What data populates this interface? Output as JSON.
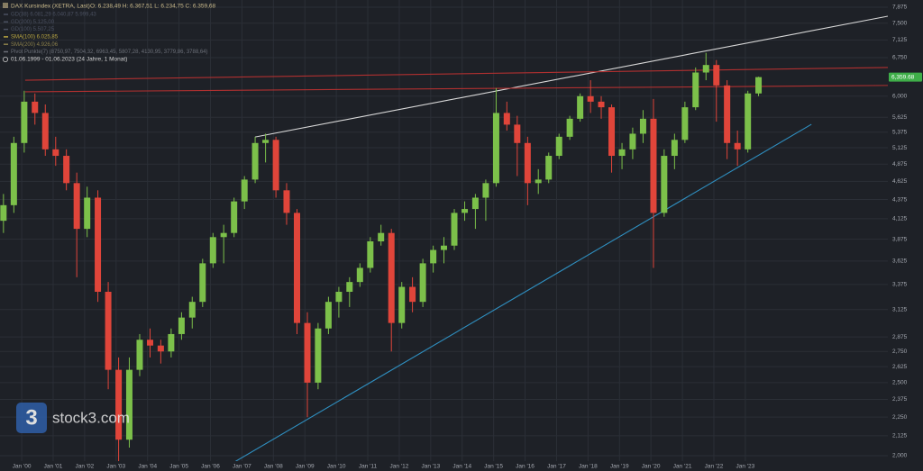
{
  "chart_data": {
    "type": "candlestick",
    "title": "DAX Kursindex (XETRA, Last)",
    "ohlc_text": "O: 6.238,49  H: 6.367,51  L: 6.234,75  C: 6.359,68",
    "indicators": [
      {
        "text": "GD(38)  6.081,29  6.040,87  5.999,43",
        "color": "#4a5060"
      },
      {
        "text": "GD(200)  5.125,00",
        "color": "#4a5060"
      },
      {
        "text": "GD(100)  5.507,25",
        "color": "#4a5060"
      },
      {
        "text": "SMA(100)  6.025,85",
        "color": "#b9a640"
      },
      {
        "text": "SMA(200)  4.926,06",
        "color": "#8a7f4a"
      },
      {
        "text": "Pivot Punkte(7)  (8750,97,  7504,32,  6963,45,  5807,28,  4130,95,  3779,86,  3788,64)",
        "color": "#6b6f78"
      }
    ],
    "period": "01.06.1999 - 01.06.2023  (24 Jahre, 1 Monat)",
    "watermark": "stock3.com",
    "log_scale": true,
    "grid": true,
    "up_color": "#7cc04a",
    "down_color": "#e0453a",
    "xlim": [
      1999.31,
      2027.53
    ],
    "ylim": [
      1967,
      8050
    ],
    "x": [
      1999.42,
      1999.75,
      2000.08,
      2000.42,
      2000.75,
      2001.08,
      2001.42,
      2001.75,
      2002.08,
      2002.42,
      2002.75,
      2003.08,
      2003.42,
      2003.75,
      2004.08,
      2004.42,
      2004.75,
      2005.08,
      2005.42,
      2005.75,
      2006.08,
      2006.42,
      2006.75,
      2007.08,
      2007.42,
      2007.75,
      2008.08,
      2008.42,
      2008.75,
      2009.08,
      2009.42,
      2009.75,
      2010.08,
      2010.42,
      2010.75,
      2011.08,
      2011.42,
      2011.75,
      2012.08,
      2012.42,
      2012.75,
      2013.08,
      2013.42,
      2013.75,
      2014.08,
      2014.42,
      2014.75,
      2015.08,
      2015.42,
      2015.75,
      2016.08,
      2016.42,
      2016.75,
      2017.08,
      2017.42,
      2017.75,
      2018.08,
      2018.42,
      2018.75,
      2019.08,
      2019.42,
      2019.75,
      2020.08,
      2020.42,
      2020.75,
      2021.08,
      2021.42,
      2021.75,
      2022.08,
      2022.42,
      2022.75,
      2023.08,
      2023.42
    ],
    "open": [
      4100,
      4300,
      5200,
      5900,
      5700,
      5100,
      5000,
      4600,
      4000,
      4400,
      3300,
      2600,
      2100,
      2600,
      2850,
      2800,
      2750,
      2900,
      3050,
      3200,
      3600,
      3900,
      3950,
      4350,
      4650,
      5200,
      5250,
      4500,
      4200,
      3000,
      2500,
      2950,
      3200,
      3300,
      3400,
      3550,
      3850,
      3950,
      3000,
      3350,
      3200,
      3600,
      3750,
      3800,
      4200,
      4250,
      4400,
      4600,
      5700,
      5500,
      5200,
      4600,
      4650,
      5000,
      5300,
      5600,
      6000,
      5900,
      5800,
      5000,
      5100,
      5350,
      5600,
      4200,
      5000,
      5250,
      5800,
      6450,
      6600,
      6200,
      5200,
      5100,
      6050
    ],
    "high": [
      4450,
      5300,
      6100,
      6050,
      5850,
      5300,
      5100,
      4750,
      4550,
      4500,
      3400,
      2700,
      2700,
      2900,
      2950,
      2850,
      2950,
      3100,
      3250,
      3650,
      3950,
      4050,
      4400,
      4700,
      5300,
      5350,
      5300,
      4600,
      4250,
      3100,
      3000,
      3250,
      3350,
      3450,
      3600,
      3900,
      4050,
      4000,
      3400,
      3450,
      3650,
      3800,
      3900,
      4250,
      4350,
      4450,
      4650,
      6150,
      5900,
      5650,
      5300,
      4800,
      5050,
      5350,
      5650,
      6050,
      6300,
      6000,
      5850,
      5200,
      5450,
      5750,
      5950,
      5100,
      5350,
      5900,
      6550,
      6850,
      6700,
      6300,
      5400,
      6100,
      6367.51
    ],
    "low": [
      3950,
      4200,
      5050,
      5500,
      5000,
      4850,
      4500,
      3450,
      3900,
      3200,
      2450,
      1950,
      2050,
      2550,
      2700,
      2650,
      2700,
      2850,
      2950,
      3150,
      3550,
      3600,
      3900,
      4250,
      4600,
      4900,
      4400,
      4050,
      2900,
      2250,
      2450,
      2900,
      3050,
      3150,
      3350,
      3500,
      3800,
      2750,
      2950,
      3100,
      3150,
      3500,
      3600,
      3750,
      4100,
      4000,
      4100,
      4550,
      5400,
      4700,
      4300,
      4450,
      4600,
      4950,
      5250,
      5550,
      5700,
      5600,
      4750,
      4800,
      4950,
      5200,
      3550,
      4150,
      4800,
      5200,
      5750,
      6300,
      5550,
      4950,
      4850,
      5050,
      6000
    ],
    "close": [
      4300,
      5200,
      5900,
      5700,
      5100,
      5000,
      4600,
      4000,
      4400,
      3300,
      2600,
      2100,
      2600,
      2850,
      2800,
      2750,
      2900,
      3050,
      3200,
      3600,
      3900,
      3950,
      4350,
      4650,
      5200,
      5250,
      4500,
      4200,
      3000,
      2500,
      2950,
      3200,
      3300,
      3400,
      3550,
      3850,
      3950,
      3000,
      3350,
      3200,
      3600,
      3750,
      3800,
      4200,
      4250,
      4400,
      4600,
      5700,
      5500,
      5200,
      4600,
      4650,
      5000,
      5300,
      5600,
      6000,
      5900,
      5800,
      5000,
      5100,
      5350,
      5600,
      4200,
      5000,
      5250,
      5800,
      6450,
      6600,
      6200,
      5200,
      5100,
      6050,
      6359.68
    ],
    "last_price": {
      "value": 6359.68,
      "label": "6,359.68"
    },
    "trendlines": [
      {
        "color": "#d8d8d8",
        "x": [
          2007.42,
          2027.53
        ],
        "y": [
          5296,
          7661
        ]
      },
      {
        "color": "#2f8fc0",
        "x": [
          2006.27,
          2025.1
        ],
        "y": [
          1908,
          5505
        ]
      },
      {
        "color": "#b03030",
        "x": [
          2000.11,
          2027.53
        ],
        "y": [
          6300,
          6550
        ]
      },
      {
        "color": "#b03030",
        "x": [
          2000.11,
          2027.53
        ],
        "y": [
          6080,
          6200
        ]
      }
    ],
    "yticks": [
      {
        "value": 7875,
        "label": "7,875"
      },
      {
        "value": 7500,
        "label": "7,500"
      },
      {
        "value": 7125,
        "label": "7,125"
      },
      {
        "value": 6750,
        "label": "6,750"
      },
      {
        "value": 6000,
        "label": "6,000"
      },
      {
        "value": 5625,
        "label": "5,625"
      },
      {
        "value": 5375,
        "label": "5,375"
      },
      {
        "value": 5125,
        "label": "5,125"
      },
      {
        "value": 4875,
        "label": "4,875"
      },
      {
        "value": 4625,
        "label": "4,625"
      },
      {
        "value": 4375,
        "label": "4,375"
      },
      {
        "value": 4125,
        "label": "4,125"
      },
      {
        "value": 3875,
        "label": "3,875"
      },
      {
        "value": 3625,
        "label": "3,625"
      },
      {
        "value": 3375,
        "label": "3,375"
      },
      {
        "value": 3125,
        "label": "3,125"
      },
      {
        "value": 2875,
        "label": "2,875"
      },
      {
        "value": 2750,
        "label": "2,750"
      },
      {
        "value": 2625,
        "label": "2,625"
      },
      {
        "value": 2500,
        "label": "2,500"
      },
      {
        "value": 2375,
        "label": "2,375"
      },
      {
        "value": 2250,
        "label": "2,250"
      },
      {
        "value": 2125,
        "label": "2,125"
      },
      {
        "value": 2000,
        "label": "2,000"
      }
    ],
    "xticks": [
      {
        "value": 2000,
        "label": "Jan '00"
      },
      {
        "value": 2001,
        "label": "Jan '01"
      },
      {
        "value": 2002,
        "label": "Jan '02"
      },
      {
        "value": 2003,
        "label": "Jan '03"
      },
      {
        "value": 2004,
        "label": "Jan '04"
      },
      {
        "value": 2005,
        "label": "Jan '05"
      },
      {
        "value": 2006,
        "label": "Jan '06"
      },
      {
        "value": 2007,
        "label": "Jan '07"
      },
      {
        "value": 2008,
        "label": "Jan '08"
      },
      {
        "value": 2009,
        "label": "Jan '09"
      },
      {
        "value": 2010,
        "label": "Jan '10"
      },
      {
        "value": 2011,
        "label": "Jan '11"
      },
      {
        "value": 2012,
        "label": "Jan '12"
      },
      {
        "value": 2013,
        "label": "Jan '13"
      },
      {
        "value": 2014,
        "label": "Jan '14"
      },
      {
        "value": 2015,
        "label": "Jan '15"
      },
      {
        "value": 2016,
        "label": "Jan '16"
      },
      {
        "value": 2017,
        "label": "Jan '17"
      },
      {
        "value": 2018,
        "label": "Jan '18"
      },
      {
        "value": 2019,
        "label": "Jan '19"
      },
      {
        "value": 2020,
        "label": "Jan '20"
      },
      {
        "value": 2021,
        "label": "Jan '21"
      },
      {
        "value": 2022,
        "label": "Jan '22"
      },
      {
        "value": 2023,
        "label": "Jan '23"
      }
    ]
  }
}
